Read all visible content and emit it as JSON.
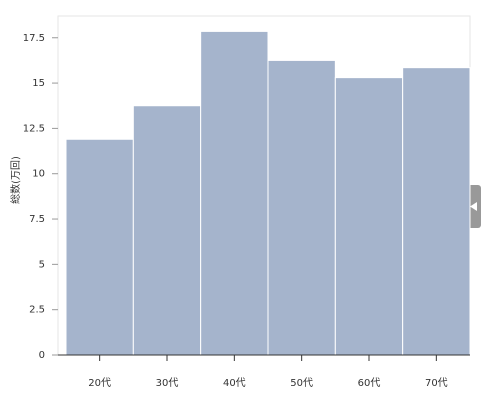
{
  "chart_data": {
    "type": "bar",
    "y_label": "総数(万回)",
    "categories": [
      "20代",
      "30代",
      "40代",
      "50代",
      "60代",
      "70代"
    ],
    "values": [
      11.9,
      13.75,
      17.85,
      16.25,
      15.3,
      15.85
    ],
    "color": "#a5b4cc",
    "ylim": [
      0,
      18.7
    ],
    "yticks": [
      0,
      2.5,
      5,
      7.5,
      10,
      12.5,
      15,
      17.5
    ]
  }
}
